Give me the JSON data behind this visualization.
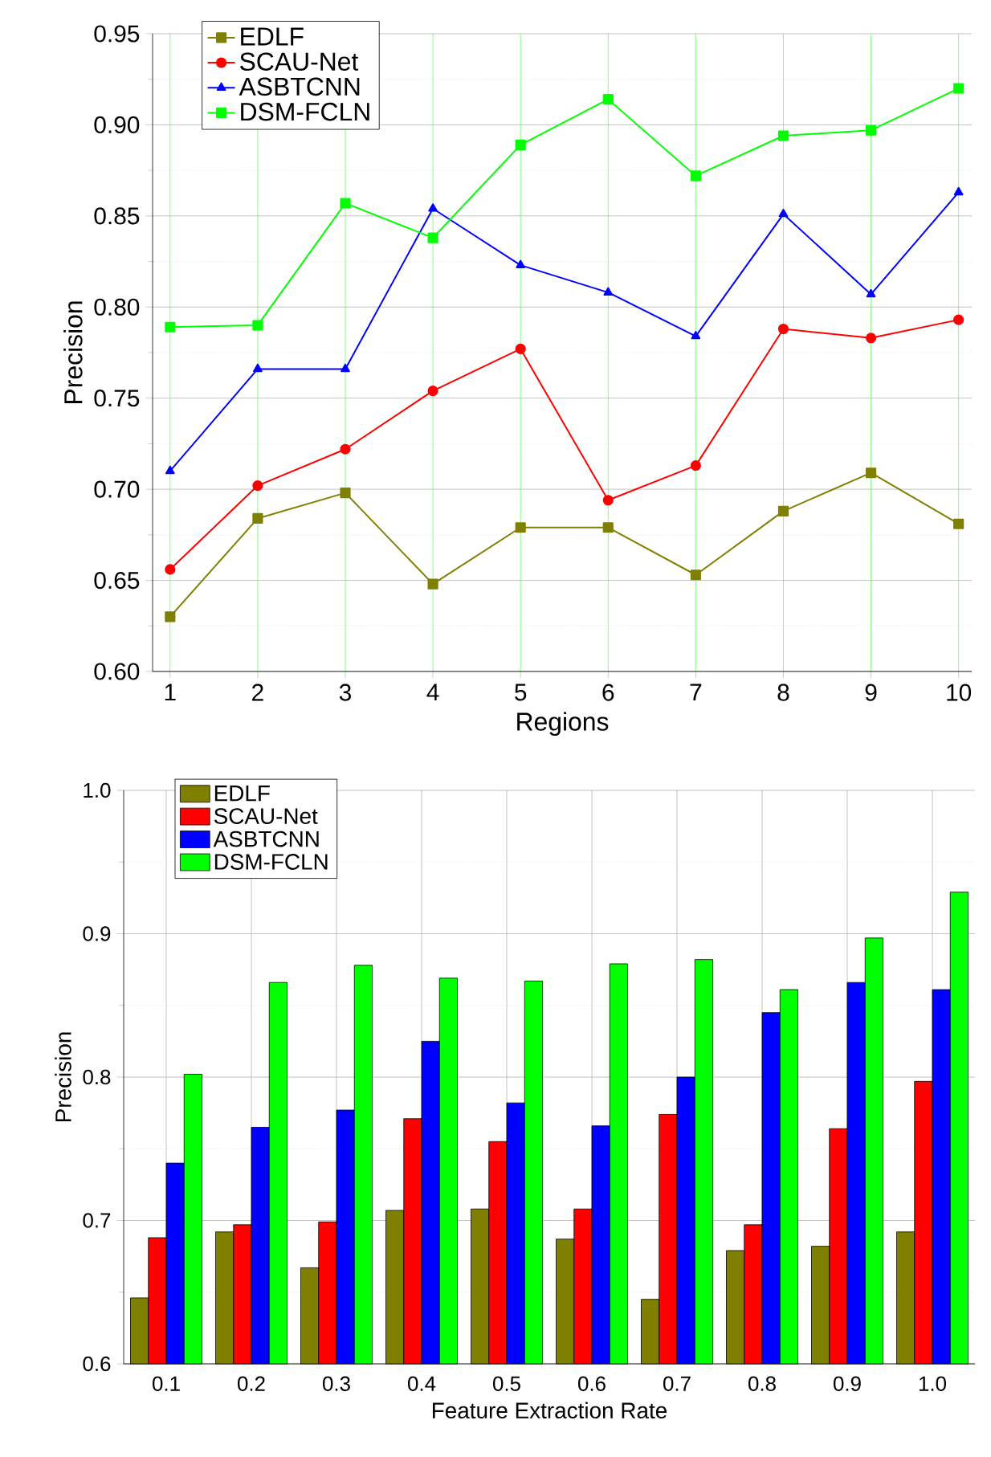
{
  "chart_data": [
    {
      "type": "line",
      "xlabel": "Regions",
      "ylabel": "Precision",
      "x": [
        1,
        2,
        3,
        4,
        5,
        6,
        7,
        8,
        9,
        10
      ],
      "xlim": [
        0.8,
        10.15
      ],
      "ylim": [
        0.6,
        0.95
      ],
      "xticks": [
        1,
        2,
        3,
        4,
        5,
        6,
        7,
        8,
        9,
        10
      ],
      "yticks": [
        {
          "value": 0.6,
          "label": "0.60"
        },
        {
          "value": 0.65,
          "label": "0.65"
        },
        {
          "value": 0.7,
          "label": "0.70"
        },
        {
          "value": 0.75,
          "label": "0.75"
        },
        {
          "value": 0.8,
          "label": "0.80"
        },
        {
          "value": 0.85,
          "label": "0.85"
        },
        {
          "value": 0.9,
          "label": "0.90"
        },
        {
          "value": 0.95,
          "label": "0.95"
        }
      ],
      "grid": true,
      "legend": "top left",
      "series": [
        {
          "name": "EDLF",
          "color": "#808000",
          "marker": "square",
          "values": [
            0.63,
            0.684,
            0.698,
            0.648,
            0.679,
            0.679,
            0.653,
            0.688,
            0.709,
            0.681
          ]
        },
        {
          "name": "SCAU-Net",
          "color": "#ff0000",
          "marker": "circle",
          "values": [
            0.656,
            0.702,
            0.722,
            0.754,
            0.777,
            0.694,
            0.713,
            0.788,
            0.783,
            0.793
          ]
        },
        {
          "name": "ASBTCNN",
          "color": "#0000ff",
          "marker": "triangle",
          "values": [
            0.71,
            0.766,
            0.766,
            0.854,
            0.823,
            0.808,
            0.784,
            0.851,
            0.807,
            0.863
          ]
        },
        {
          "name": "DSM-FCLN",
          "color": "#00ff00",
          "marker": "square",
          "values": [
            0.789,
            0.79,
            0.857,
            0.838,
            0.889,
            0.914,
            0.872,
            0.894,
            0.897,
            0.92
          ]
        }
      ]
    },
    {
      "type": "bar",
      "xlabel": "Feature Extraction Rate",
      "ylabel": "Precision",
      "categories": [
        "0.1",
        "0.2",
        "0.3",
        "0.4",
        "0.5",
        "0.6",
        "0.7",
        "0.8",
        "0.9",
        "1.0"
      ],
      "ylim": [
        0.6,
        1.0
      ],
      "yticks": [
        {
          "value": 0.6,
          "label": "0.6"
        },
        {
          "value": 0.7,
          "label": "0.7"
        },
        {
          "value": 0.8,
          "label": "0.8"
        },
        {
          "value": 0.9,
          "label": "0.9"
        },
        {
          "value": 1.0,
          "label": "1.0"
        }
      ],
      "grid": true,
      "legend": "top left",
      "series": [
        {
          "name": "EDLF",
          "color": "#808000",
          "values": [
            0.646,
            0.692,
            0.667,
            0.707,
            0.708,
            0.687,
            0.645,
            0.679,
            0.682,
            0.692
          ]
        },
        {
          "name": "SCAU-Net",
          "color": "#ff0000",
          "values": [
            0.688,
            0.697,
            0.699,
            0.771,
            0.755,
            0.708,
            0.774,
            0.697,
            0.764,
            0.797
          ]
        },
        {
          "name": "ASBTCNN",
          "color": "#0000ff",
          "values": [
            0.74,
            0.765,
            0.777,
            0.825,
            0.782,
            0.766,
            0.8,
            0.845,
            0.866,
            0.861
          ]
        },
        {
          "name": "DSM-FCLN",
          "color": "#00ff00",
          "values": [
            0.802,
            0.866,
            0.878,
            0.869,
            0.867,
            0.879,
            0.882,
            0.861,
            0.897,
            0.929
          ]
        }
      ]
    }
  ]
}
